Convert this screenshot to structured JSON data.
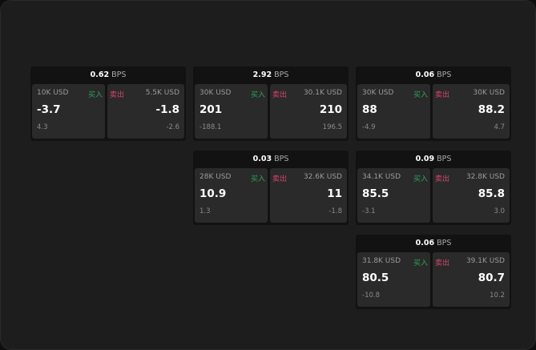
{
  "unit": "BPS",
  "buy_label": "买入",
  "sell_label": "卖出",
  "panels": [
    {
      "spread": "0.62",
      "buy": {
        "size": "10K USD",
        "price": "-3.7",
        "change": "4.3"
      },
      "sell": {
        "size": "5.5K USD",
        "price": "-1.8",
        "change": "-2.6"
      }
    },
    {
      "spread": "2.92",
      "buy": {
        "size": "30K USD",
        "price": "201",
        "change": "-188.1"
      },
      "sell": {
        "size": "30.1K USD",
        "price": "210",
        "change": "196.5"
      }
    },
    {
      "spread": "0.06",
      "buy": {
        "size": "30K USD",
        "price": "88",
        "change": "-4.9"
      },
      "sell": {
        "size": "30K USD",
        "price": "88.2",
        "change": "4.7"
      }
    },
    {
      "spread": "0.03",
      "buy": {
        "size": "28K USD",
        "price": "10.9",
        "change": "1.3"
      },
      "sell": {
        "size": "32.6K USD",
        "price": "11",
        "change": "-1.8"
      }
    },
    {
      "spread": "0.09",
      "buy": {
        "size": "34.1K USD",
        "price": "85.5",
        "change": "-3.1"
      },
      "sell": {
        "size": "32.8K USD",
        "price": "85.8",
        "change": "3.0"
      }
    },
    {
      "spread": "0.06",
      "buy": {
        "size": "31.8K USD",
        "price": "80.5",
        "change": "-10.8"
      },
      "sell": {
        "size": "39.1K USD",
        "price": "80.7",
        "change": "10.2"
      }
    }
  ]
}
